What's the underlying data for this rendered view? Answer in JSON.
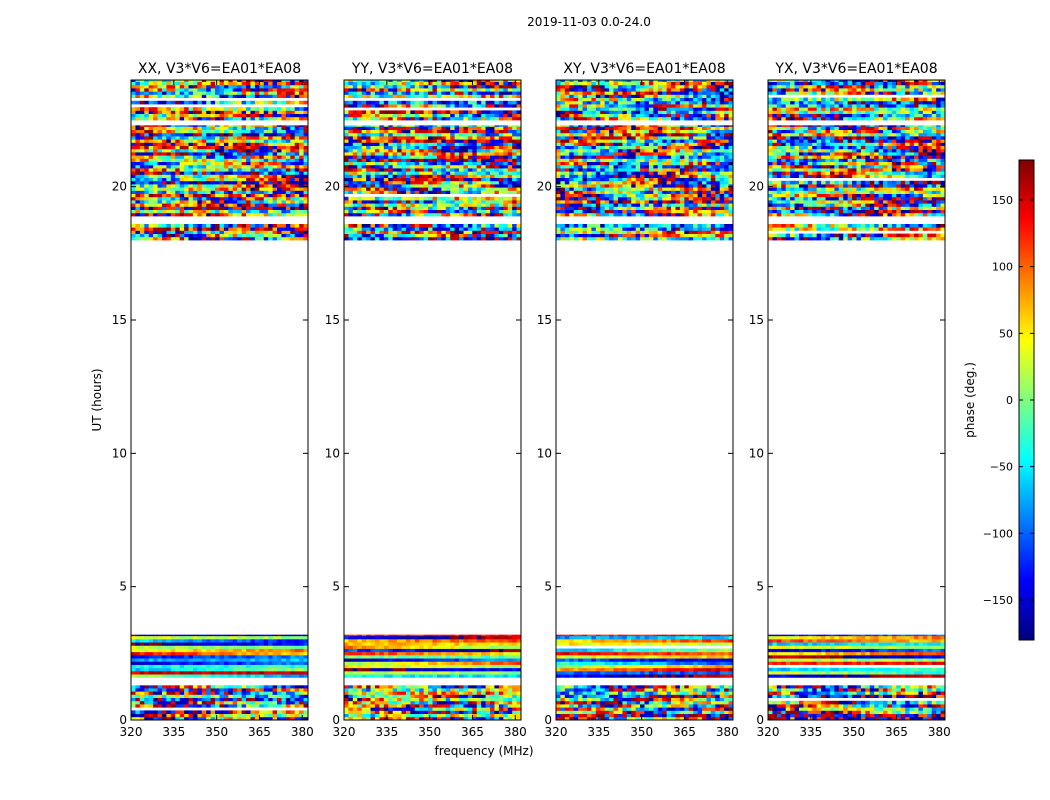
{
  "figure": {
    "suptitle": "2019-11-03 0.0-24.0",
    "xlabel": "frequency (MHz)",
    "ylabel": "UT (hours)"
  },
  "colorbar": {
    "label": "phase (deg.)",
    "range": [
      -180,
      180
    ],
    "ticks": [
      -150,
      -100,
      -50,
      0,
      50,
      100,
      150
    ],
    "tick_labels": [
      "−150",
      "−100",
      "−50",
      "0",
      "50",
      "100",
      "150"
    ],
    "colormap": [
      "#00007f",
      "#0000ff",
      "#007fff",
      "#00ffff",
      "#7fff7f",
      "#ffff00",
      "#ff7f00",
      "#ff0000",
      "#7f0000"
    ]
  },
  "chart_data": [
    {
      "type": "heatmap",
      "title": "XX, V3*V6=EA01*EA08",
      "xlim": [
        320,
        382
      ],
      "ylim": [
        0,
        24
      ],
      "xticks": [
        320,
        335,
        350,
        365,
        380
      ],
      "yticks": [
        0,
        5,
        10,
        15,
        20
      ],
      "value": "visibility phase (deg.)",
      "data_bands_hours": [
        [
          0,
          1.3
        ],
        [
          1.6,
          3.2
        ],
        [
          18.0,
          18.6
        ],
        [
          18.9,
          22.3
        ],
        [
          22.5,
          24.0
        ]
      ]
    },
    {
      "type": "heatmap",
      "title": "YY, V3*V6=EA01*EA08",
      "xlim": [
        320,
        382
      ],
      "ylim": [
        0,
        24
      ],
      "xticks": [
        320,
        335,
        350,
        365,
        380
      ],
      "yticks": [
        0,
        5,
        10,
        15,
        20
      ],
      "value": "visibility phase (deg.)",
      "data_bands_hours": [
        [
          0,
          1.3
        ],
        [
          1.6,
          3.2
        ],
        [
          18.0,
          18.6
        ],
        [
          18.9,
          22.3
        ],
        [
          22.5,
          24.0
        ]
      ]
    },
    {
      "type": "heatmap",
      "title": "XY, V3*V6=EA01*EA08",
      "xlim": [
        320,
        382
      ],
      "ylim": [
        0,
        24
      ],
      "xticks": [
        320,
        335,
        350,
        365,
        380
      ],
      "yticks": [
        0,
        5,
        10,
        15,
        20
      ],
      "value": "visibility phase (deg.)",
      "data_bands_hours": [
        [
          0,
          1.3
        ],
        [
          1.6,
          3.2
        ],
        [
          18.0,
          18.6
        ],
        [
          18.9,
          22.3
        ],
        [
          22.5,
          24.0
        ]
      ]
    },
    {
      "type": "heatmap",
      "title": "YX, V3*V6=EA01*EA08",
      "xlim": [
        320,
        382
      ],
      "ylim": [
        0,
        24
      ],
      "xticks": [
        320,
        335,
        350,
        365,
        380
      ],
      "yticks": [
        0,
        5,
        10,
        15,
        20
      ],
      "value": "visibility phase (deg.)",
      "data_bands_hours": [
        [
          0,
          1.3
        ],
        [
          1.6,
          3.2
        ],
        [
          18.0,
          18.6
        ],
        [
          18.9,
          22.3
        ],
        [
          22.5,
          24.0
        ]
      ]
    }
  ]
}
